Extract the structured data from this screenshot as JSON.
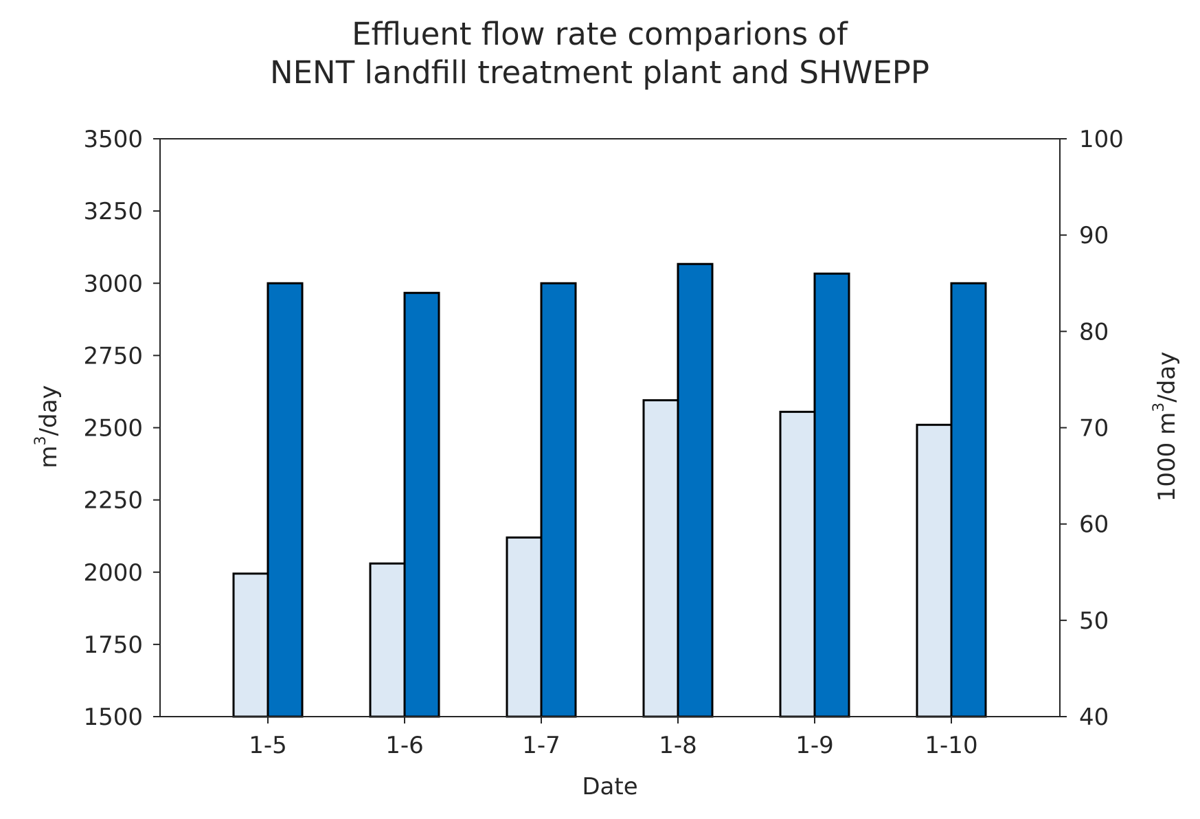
{
  "chart_data": {
    "type": "bar",
    "title_lines": [
      "Effluent flow rate comparions of",
      "NENT landfill treatment plant and SHWEPP"
    ],
    "xlabel": "Date",
    "ylabel": {
      "base": "m",
      "sup": "3",
      "rest": "/day"
    },
    "y2label": {
      "base": "1000 m",
      "sup": "3",
      "rest": "/day"
    },
    "categories": [
      "1-5",
      "1-6",
      "1-7",
      "1-8",
      "1-9",
      "1-10"
    ],
    "ylim": [
      1500,
      3500
    ],
    "yticks": [
      1500,
      1750,
      2000,
      2250,
      2500,
      2750,
      3000,
      3250,
      3500
    ],
    "y2lim": [
      40,
      100
    ],
    "y2ticks": [
      40,
      50,
      60,
      70,
      80,
      90,
      100
    ],
    "grid": false,
    "series": [
      {
        "axis": "left",
        "color": "#dce8f4",
        "values": [
          1995,
          2030,
          2120,
          2595,
          2555,
          2510
        ]
      },
      {
        "axis": "right",
        "color": "#0070c0",
        "values": [
          85,
          84,
          85,
          87,
          86,
          85
        ]
      }
    ]
  }
}
